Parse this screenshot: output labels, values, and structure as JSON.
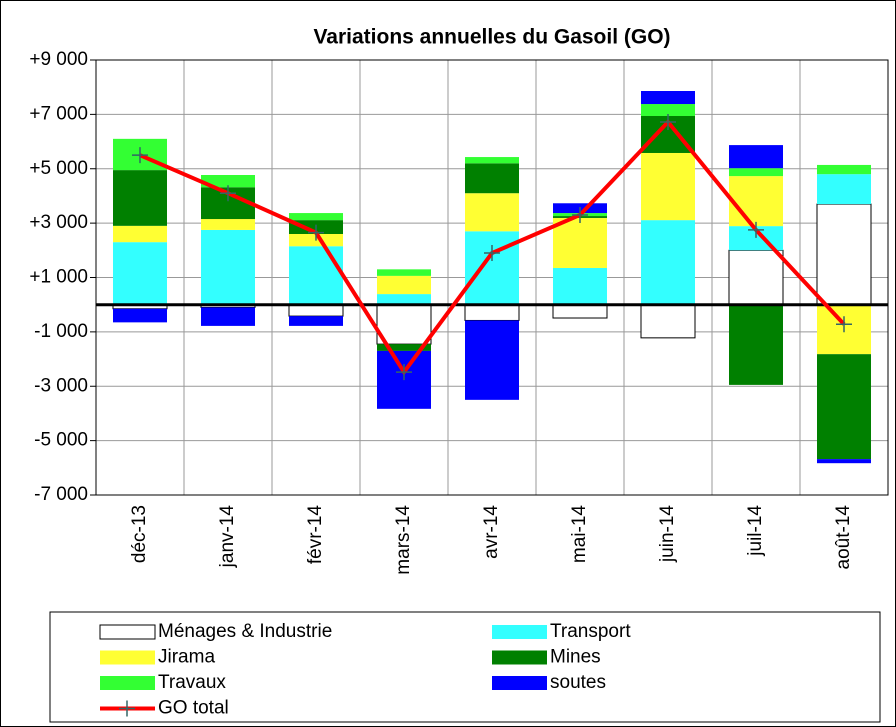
{
  "chart_data": {
    "type": "bar",
    "stacked": true,
    "title": "Variations annuelles du Gasoil (GO)",
    "categories": [
      "déc-13",
      "janv-14",
      "févr-14",
      "mars-14",
      "avr-14",
      "mai-14",
      "juin-14",
      "juil-14",
      "août-14"
    ],
    "series": [
      {
        "name": "Ménages & Industrie",
        "color": "#ffffff",
        "values": [
          -150,
          -100,
          -420,
          -1450,
          -580,
          -490,
          -1220,
          2000,
          3700
        ]
      },
      {
        "name": "Transport",
        "color": "#33ffff",
        "values": [
          2300,
          2750,
          2150,
          390,
          2700,
          1350,
          3110,
          890,
          1100
        ]
      },
      {
        "name": "Jirama",
        "color": "#ffff33",
        "values": [
          600,
          400,
          450,
          670,
          1400,
          1840,
          2470,
          1840,
          -1820
        ]
      },
      {
        "name": "Mines",
        "color": "#008000",
        "values": [
          2050,
          1170,
          510,
          -250,
          1100,
          70,
          1360,
          -2950,
          -3860
        ]
      },
      {
        "name": "Travaux",
        "color": "#33ff33",
        "values": [
          1150,
          450,
          260,
          240,
          230,
          110,
          440,
          290,
          340
        ]
      },
      {
        "name": "soutes",
        "color": "#0000ff",
        "values": [
          -500,
          -680,
          -360,
          -2130,
          -2920,
          360,
          480,
          850,
          -150
        ]
      },
      {
        "name": "GO total",
        "type": "line",
        "color": "#ff0000",
        "marker_color": "#336666",
        "values": [
          5500,
          4100,
          2650,
          -2480,
          1900,
          3300,
          6720,
          2750,
          -720
        ]
      }
    ],
    "ylim": [
      -7000,
      9000
    ],
    "yticks": [
      {
        "value": -7000,
        "label": "-7 000"
      },
      {
        "value": -5000,
        "label": "-5 000"
      },
      {
        "value": -3000,
        "label": "-3 000"
      },
      {
        "value": -1000,
        "label": "-1 000"
      },
      {
        "value": 1000,
        "label": "+1 000"
      },
      {
        "value": 3000,
        "label": "+3 000"
      },
      {
        "value": 5000,
        "label": "+5 000"
      },
      {
        "value": 7000,
        "label": "+7 000"
      },
      {
        "value": 9000,
        "label": "+9 000"
      }
    ],
    "grid": true,
    "legend": "bottom"
  }
}
